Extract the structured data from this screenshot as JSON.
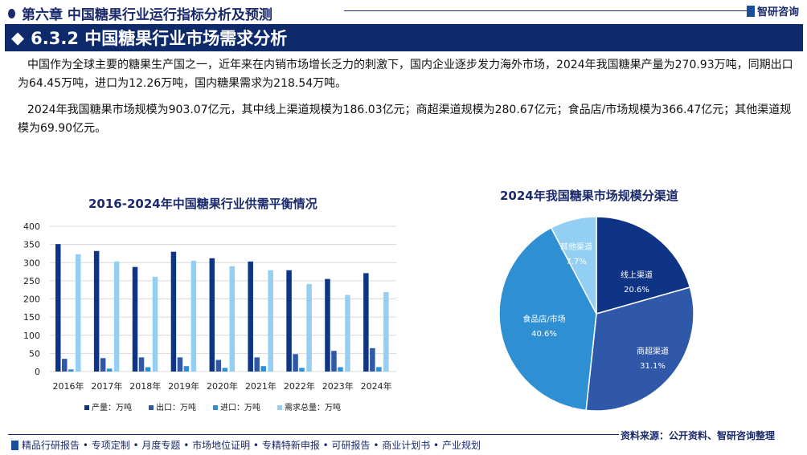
{
  "header": {
    "chapter": "第六章 中国糖果行业运行指标分析及预测",
    "logo": "智研咨询",
    "section": "6.3.2 中国糖果行业市场需求分析"
  },
  "paragraphs": [
    "中国作为全球主要的糖果生产国之一，近年来在内销市场增长乏力的刺激下，国内企业逐步发力海外市场，2024年我国糖果产量为270.93万吨，同期出口为64.45万吨，进口为12.26万吨，国内糖果需求为218.54万吨。",
    "2024年我国糖果市场规模为903.07亿元，其中线上渠道规模为186.03亿元；商超渠道规模为280.67亿元；食品店/市场规模为366.47亿元；其他渠道规模为69.90亿元。"
  ],
  "chart_data": [
    {
      "type": "bar",
      "title": "2016-2024年中国糖果行业供需平衡情况",
      "categories": [
        "2016年",
        "2017年",
        "2018年",
        "2019年",
        "2020年",
        "2021年",
        "2022年",
        "2023年",
        "2024年"
      ],
      "ylim": [
        0,
        400
      ],
      "yticks": [
        0,
        50,
        100,
        150,
        200,
        250,
        300,
        350,
        400
      ],
      "grid": true,
      "legend": "bottom",
      "series": [
        {
          "name": "产量：万吨",
          "color": "#0f3385",
          "values": [
            351,
            332,
            288,
            330,
            312,
            303,
            279,
            255,
            270.93
          ]
        },
        {
          "name": "出口：万吨",
          "color": "#2f58a8",
          "values": [
            35,
            37,
            39,
            39,
            32,
            39,
            48,
            57,
            64.45
          ]
        },
        {
          "name": "进口：万吨",
          "color": "#2f8fd3",
          "values": [
            6,
            8,
            12,
            15,
            10,
            15,
            10,
            12,
            12.26
          ]
        },
        {
          "name": "需求总量：万吨",
          "color": "#92cff2",
          "values": [
            323,
            303,
            261,
            305,
            290,
            279,
            241,
            211,
            218.54
          ]
        }
      ]
    },
    {
      "type": "pie",
      "title": "2024年我国糖果市场规模分渠道",
      "slices": [
        {
          "label": "线上渠道",
          "value": 20.6,
          "text": "20.6%",
          "color": "#0f3385"
        },
        {
          "label": "商超渠道",
          "value": 31.1,
          "text": "31.1%",
          "color": "#2f58a8"
        },
        {
          "label": "食品店/市场",
          "value": 40.6,
          "text": "40.6%",
          "color": "#2f8fd3"
        },
        {
          "label": "其他渠道",
          "value": 7.7,
          "text": "7.7%",
          "color": "#92cff2"
        }
      ]
    }
  ],
  "footer": {
    "services": "精品行研报告 • 专项定制 • 月度专题 • 市场地位证明 • 专精特新申报 • 可研报告 • 商业计划书 • 产业规划",
    "source": "资料来源：公开资料、智研咨询整理"
  }
}
